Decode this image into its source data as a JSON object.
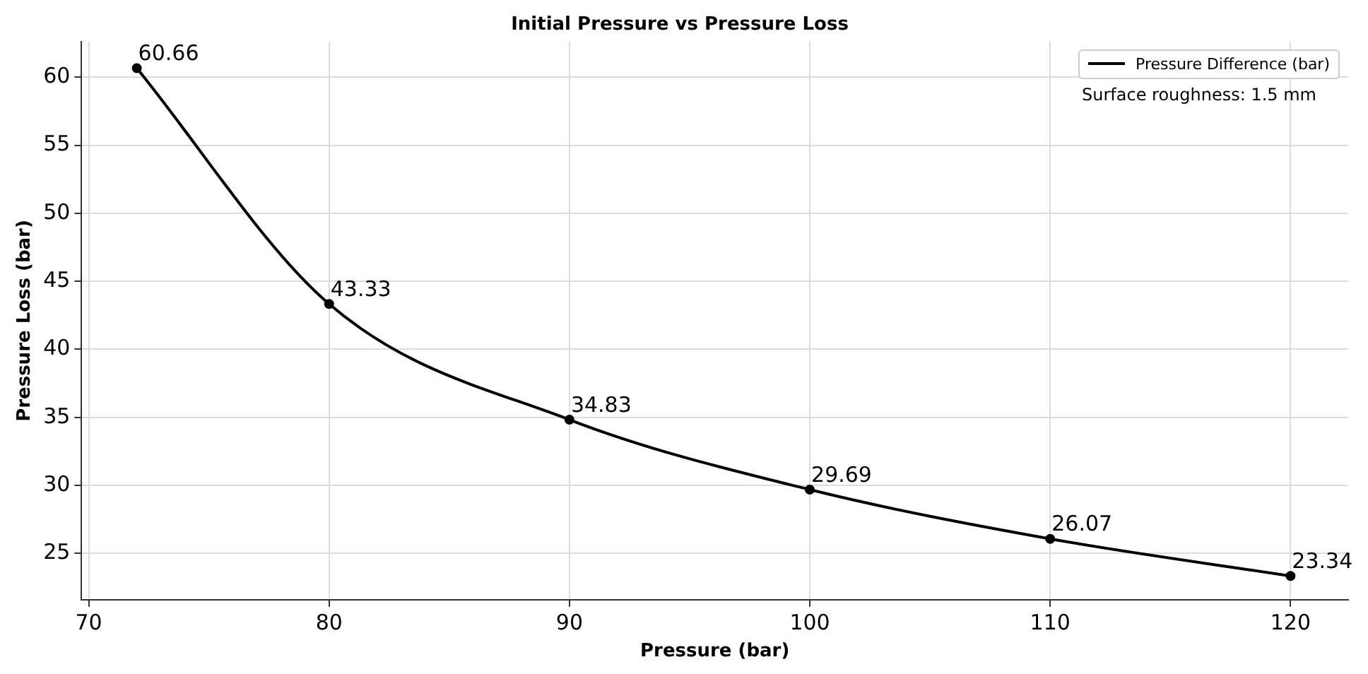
{
  "chart_data": {
    "type": "line",
    "title": "Initial Pressure vs Pressure Loss",
    "xlabel": "Pressure (bar)",
    "ylabel": "Pressure Loss (bar)",
    "x": [
      72,
      80,
      90,
      100,
      110,
      120
    ],
    "series": [
      {
        "name": "Pressure Difference (bar)",
        "color": "#000000",
        "values": [
          60.66,
          43.33,
          34.83,
          29.69,
          26.07,
          23.34
        ]
      }
    ],
    "xlim": [
      69.7,
      122.4
    ],
    "xticks": [
      70,
      80,
      90,
      100,
      110,
      120
    ],
    "ylim": [
      21.6,
      62.6
    ],
    "yticks": [
      25,
      30,
      35,
      40,
      45,
      50,
      55,
      60
    ],
    "grid": true,
    "legend": "top right",
    "marker": "circle",
    "line_style": "solid",
    "data_labels": true,
    "annotations": [
      "Surface roughness: 1.5 mm"
    ]
  }
}
